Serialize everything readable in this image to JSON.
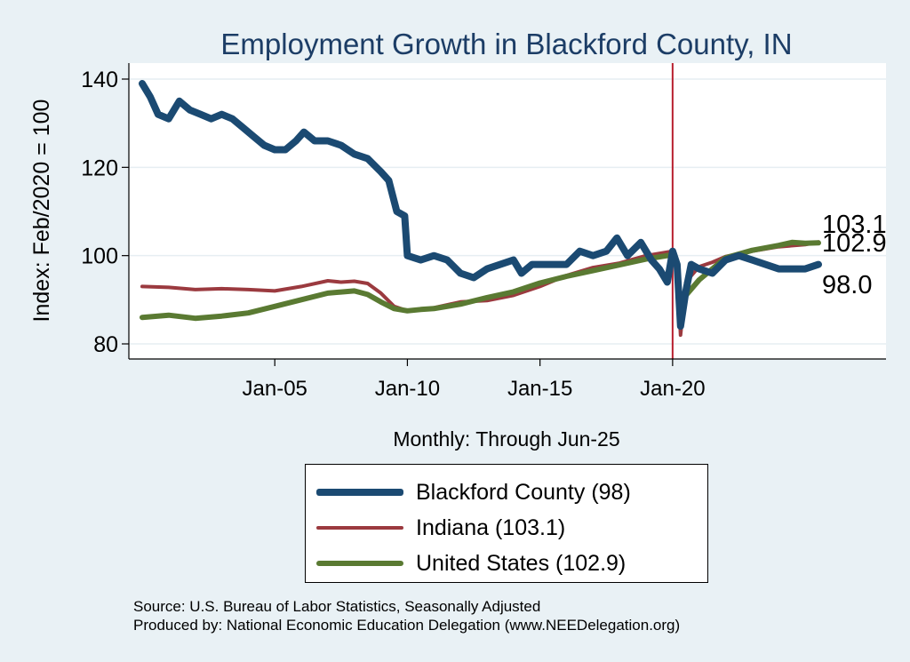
{
  "chart_data": {
    "type": "line",
    "title": "Employment Growth in Blackford  County, IN",
    "xlabel": "Monthly: Through Jun-25",
    "ylabel": "Index: Feb/2020 = 100",
    "ylim": [
      80,
      140
    ],
    "yticks": [
      80,
      100,
      120,
      140
    ],
    "xlim": [
      2000.0,
      2025.5
    ],
    "xticks": [
      {
        "value": 2005,
        "label": "Jan-05"
      },
      {
        "value": 2010,
        "label": "Jan-10"
      },
      {
        "value": 2015,
        "label": "Jan-15"
      },
      {
        "value": 2020,
        "label": "Jan-20"
      }
    ],
    "reference_line_x": 2020.0,
    "grid": "horizontal",
    "legend_position": "bottom-center",
    "series": [
      {
        "name": "Blackford  County (98)",
        "color": "#1b4a72",
        "width": 8,
        "points": [
          [
            2000.0,
            139
          ],
          [
            2000.3,
            136
          ],
          [
            2000.6,
            132
          ],
          [
            2001.0,
            131
          ],
          [
            2001.4,
            135
          ],
          [
            2001.8,
            133
          ],
          [
            2002.2,
            132
          ],
          [
            2002.6,
            131
          ],
          [
            2003.0,
            132
          ],
          [
            2003.4,
            131
          ],
          [
            2003.8,
            129
          ],
          [
            2004.2,
            127
          ],
          [
            2004.6,
            125
          ],
          [
            2005.0,
            124
          ],
          [
            2005.4,
            124
          ],
          [
            2005.8,
            126
          ],
          [
            2006.1,
            128
          ],
          [
            2006.5,
            126
          ],
          [
            2007.0,
            126
          ],
          [
            2007.5,
            125
          ],
          [
            2008.0,
            123
          ],
          [
            2008.5,
            122
          ],
          [
            2009.0,
            119
          ],
          [
            2009.3,
            117
          ],
          [
            2009.6,
            110
          ],
          [
            2009.9,
            109
          ],
          [
            2010.0,
            100
          ],
          [
            2010.5,
            99
          ],
          [
            2011.0,
            100
          ],
          [
            2011.5,
            99
          ],
          [
            2012.0,
            96
          ],
          [
            2012.5,
            95
          ],
          [
            2013.0,
            97
          ],
          [
            2013.5,
            98
          ],
          [
            2014.0,
            99
          ],
          [
            2014.3,
            96
          ],
          [
            2014.7,
            98
          ],
          [
            2015.0,
            98
          ],
          [
            2015.5,
            98
          ],
          [
            2016.0,
            98
          ],
          [
            2016.5,
            101
          ],
          [
            2017.0,
            100
          ],
          [
            2017.5,
            101
          ],
          [
            2017.9,
            104
          ],
          [
            2018.3,
            100
          ],
          [
            2018.8,
            103
          ],
          [
            2019.2,
            99
          ],
          [
            2019.5,
            97
          ],
          [
            2019.8,
            94
          ],
          [
            2020.0,
            101
          ],
          [
            2020.17,
            98
          ],
          [
            2020.3,
            84
          ],
          [
            2020.5,
            92
          ],
          [
            2020.7,
            98
          ],
          [
            2021.0,
            97
          ],
          [
            2021.5,
            96
          ],
          [
            2022.0,
            99
          ],
          [
            2022.5,
            100
          ],
          [
            2023.0,
            99
          ],
          [
            2023.5,
            98
          ],
          [
            2024.0,
            97
          ],
          [
            2024.5,
            97
          ],
          [
            2025.0,
            97
          ],
          [
            2025.5,
            98
          ]
        ]
      },
      {
        "name": "Indiana (103.1)",
        "color": "#9b3a3f",
        "width": 4,
        "points": [
          [
            2000.0,
            93
          ],
          [
            2001.0,
            92.8
          ],
          [
            2002.0,
            92.3
          ],
          [
            2003.0,
            92.5
          ],
          [
            2004.0,
            92.3
          ],
          [
            2005.0,
            92.0
          ],
          [
            2006.0,
            93.0
          ],
          [
            2007.0,
            94.3
          ],
          [
            2007.5,
            94.0
          ],
          [
            2008.0,
            94.2
          ],
          [
            2008.5,
            93.7
          ],
          [
            2009.0,
            91.5
          ],
          [
            2009.5,
            88.5
          ],
          [
            2010.0,
            87.5
          ],
          [
            2010.5,
            87.7
          ],
          [
            2011.0,
            88.2
          ],
          [
            2012.0,
            89.5
          ],
          [
            2013.0,
            89.8
          ],
          [
            2014.0,
            91.0
          ],
          [
            2015.0,
            93.0
          ],
          [
            2016.0,
            95.5
          ],
          [
            2017.0,
            97.3
          ],
          [
            2018.0,
            98.3
          ],
          [
            2019.0,
            100.0
          ],
          [
            2020.0,
            101.0
          ],
          [
            2020.17,
            98
          ],
          [
            2020.3,
            82
          ],
          [
            2020.5,
            94
          ],
          [
            2021.0,
            97.5
          ],
          [
            2021.5,
            98.5
          ],
          [
            2022.0,
            99.8
          ],
          [
            2023.0,
            101.0
          ],
          [
            2024.0,
            102.0
          ],
          [
            2025.0,
            102.5
          ],
          [
            2025.5,
            103.1
          ]
        ]
      },
      {
        "name": "United States (102.9)",
        "color": "#5a7a32",
        "width": 6,
        "points": [
          [
            2000.0,
            86.0
          ],
          [
            2001.0,
            86.5
          ],
          [
            2002.0,
            85.8
          ],
          [
            2003.0,
            86.3
          ],
          [
            2004.0,
            87.0
          ],
          [
            2005.0,
            88.5
          ],
          [
            2006.0,
            90.0
          ],
          [
            2007.0,
            91.5
          ],
          [
            2008.0,
            92.0
          ],
          [
            2008.5,
            91.2
          ],
          [
            2009.0,
            89.5
          ],
          [
            2009.5,
            88.0
          ],
          [
            2010.0,
            87.5
          ],
          [
            2010.5,
            87.8
          ],
          [
            2011.0,
            88.0
          ],
          [
            2012.0,
            89.0
          ],
          [
            2013.0,
            90.5
          ],
          [
            2014.0,
            91.8
          ],
          [
            2015.0,
            93.8
          ],
          [
            2016.0,
            95.3
          ],
          [
            2017.0,
            96.6
          ],
          [
            2018.0,
            97.9
          ],
          [
            2019.0,
            99.2
          ],
          [
            2020.0,
            100.2
          ],
          [
            2020.17,
            98
          ],
          [
            2020.3,
            85.5
          ],
          [
            2020.5,
            91
          ],
          [
            2021.0,
            94.5
          ],
          [
            2021.5,
            97
          ],
          [
            2022.0,
            99.5
          ],
          [
            2023.0,
            101.2
          ],
          [
            2024.0,
            102.3
          ],
          [
            2024.5,
            103
          ],
          [
            2025.0,
            102.8
          ],
          [
            2025.5,
            102.9
          ]
        ]
      }
    ],
    "end_labels": [
      {
        "text": "103.1",
        "y": 103.1
      },
      {
        "text": "102.9",
        "y": 102.9
      },
      {
        "text": "98.0",
        "y": 98.0
      }
    ]
  },
  "source_lines": [
    "Source: U.S. Bureau of Labor Statistics, Seasonally Adjusted",
    "Produced by: National Economic Education Delegation (www.NEEDelegation.org)"
  ]
}
